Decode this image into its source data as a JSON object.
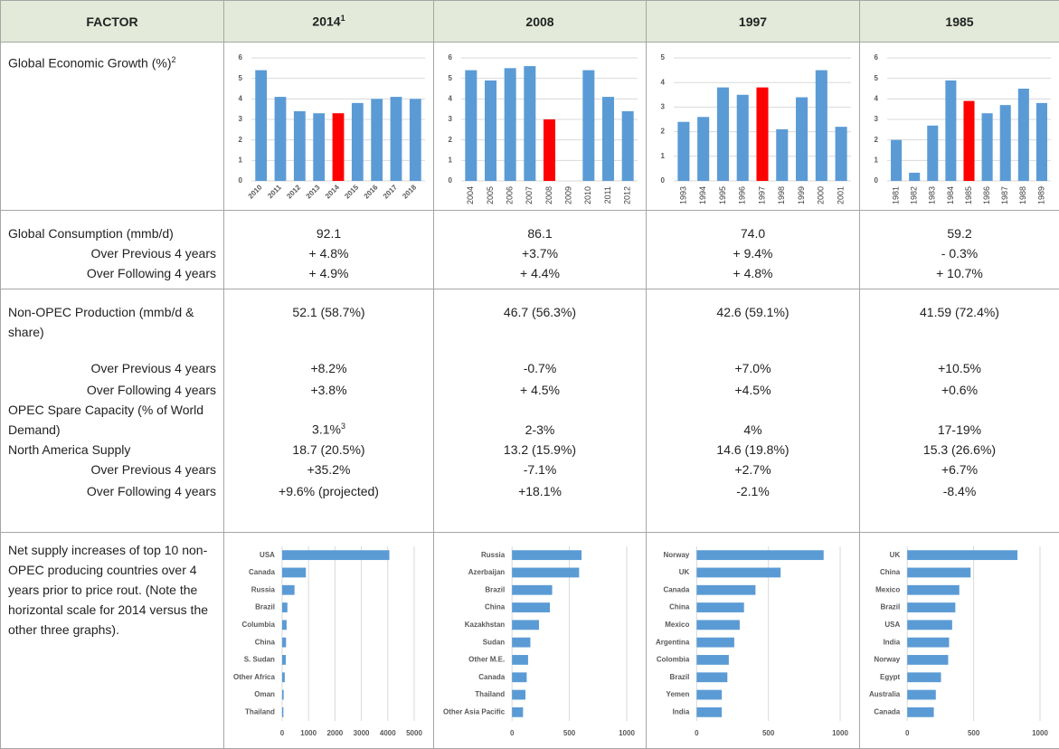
{
  "header": [
    {
      "text": "FACTOR"
    },
    {
      "text": "2014",
      "sup": "1"
    },
    {
      "text": "2008"
    },
    {
      "text": "1997"
    },
    {
      "text": "1985"
    }
  ],
  "growth": {
    "label": "Global Economic Growth (%)",
    "sup": "2",
    "charts": [
      {
        "type": "bar",
        "categories": [
          "2010",
          "2011",
          "2012",
          "2013",
          "2014",
          "2015",
          "2016",
          "2017",
          "2018"
        ],
        "values": [
          5.4,
          4.1,
          3.4,
          3.3,
          3.3,
          3.8,
          4.0,
          4.1,
          4.0
        ],
        "colors": [
          "#5b9bd5",
          "#5b9bd5",
          "#5b9bd5",
          "#5b9bd5",
          "#ff0000",
          "#5b9bd5",
          "#5b9bd5",
          "#5b9bd5",
          "#5b9bd5"
        ],
        "ylim": [
          0,
          6
        ],
        "yticks": [
          0,
          1,
          2,
          3,
          4,
          5,
          6
        ],
        "grid": true,
        "xtick_rotation": -45
      },
      {
        "type": "bar",
        "categories": [
          "2004",
          "2005",
          "2006",
          "2007",
          "2008",
          "2009",
          "2010",
          "2011",
          "2012"
        ],
        "values": [
          5.4,
          4.9,
          5.5,
          5.6,
          3.0,
          null,
          5.4,
          4.1,
          3.4
        ],
        "colors": [
          "#5b9bd5",
          "#5b9bd5",
          "#5b9bd5",
          "#5b9bd5",
          "#ff0000",
          "#5b9bd5",
          "#5b9bd5",
          "#5b9bd5",
          "#5b9bd5"
        ],
        "ylim": [
          0,
          6
        ],
        "yticks": [
          0,
          1,
          2,
          3,
          4,
          5,
          6
        ],
        "grid": true,
        "xtick_rotation": -90
      },
      {
        "type": "bar",
        "categories": [
          "1993",
          "1994",
          "1995",
          "1996",
          "1997",
          "1998",
          "1999",
          "2000",
          "2001"
        ],
        "values": [
          2.4,
          2.6,
          3.8,
          3.5,
          3.8,
          2.1,
          3.4,
          4.5,
          2.2
        ],
        "colors": [
          "#5b9bd5",
          "#5b9bd5",
          "#5b9bd5",
          "#5b9bd5",
          "#ff0000",
          "#5b9bd5",
          "#5b9bd5",
          "#5b9bd5",
          "#5b9bd5"
        ],
        "ylim": [
          0,
          5
        ],
        "yticks": [
          0,
          1,
          2,
          3,
          4,
          5
        ],
        "grid": true,
        "xtick_rotation": -90
      },
      {
        "type": "bar",
        "categories": [
          "1981",
          "1982",
          "1983",
          "1984",
          "1985",
          "1986",
          "1987",
          "1988",
          "1989"
        ],
        "values": [
          2.0,
          0.4,
          2.7,
          4.9,
          3.9,
          3.3,
          3.7,
          4.5,
          3.8
        ],
        "colors": [
          "#5b9bd5",
          "#5b9bd5",
          "#5b9bd5",
          "#5b9bd5",
          "#ff0000",
          "#5b9bd5",
          "#5b9bd5",
          "#5b9bd5",
          "#5b9bd5"
        ],
        "ylim": [
          0,
          6
        ],
        "yticks": [
          0,
          1,
          2,
          3,
          4,
          5,
          6
        ],
        "grid": true,
        "xtick_rotation": -90
      }
    ]
  },
  "consumption": [
    {
      "label": "Global Consumption (mmb/d)",
      "cells": [
        "92.1",
        "86.1",
        "74.0",
        "59.2"
      ]
    },
    {
      "label": "Over Previous 4 years",
      "indent": true,
      "cells": [
        "+ 4.8%",
        "+3.7%",
        "+ 9.4%",
        "- 0.3%"
      ]
    },
    {
      "label": "Over Following 4 years",
      "indent": true,
      "cells": [
        "+ 4.9%",
        "+ 4.4%",
        "+ 4.8%",
        "+ 10.7%"
      ]
    }
  ],
  "production": [
    {
      "label": "Non-OPEC Production (mmb/d & share)",
      "cells": [
        "52.1 (58.7%)",
        "46.7 (56.3%)",
        "42.6 (59.1%)",
        "41.59 (72.4%)"
      ]
    },
    {
      "label": "Over Previous 4 years",
      "indent": true,
      "cells": [
        "+8.2%",
        "-0.7%",
        "+7.0%",
        "+10.5%"
      ]
    },
    {
      "label": "Over Following 4 years",
      "indent": true,
      "cells": [
        "+3.8%",
        "+ 4.5%",
        "+4.5%",
        "+0.6%"
      ]
    },
    {
      "label": "OPEC Spare Capacity (% of World Demand)",
      "cells": [
        {
          "text": "3.1%",
          "sup": "3"
        },
        "2-3%",
        "4%",
        "17-19%"
      ]
    },
    {
      "label": "North America Supply",
      "cells": [
        "18.7 (20.5%)",
        "13.2 (15.9%)",
        "14.6 (19.8%)",
        "15.3 (26.6%)"
      ]
    },
    {
      "label": "Over Previous 4 years",
      "indent": true,
      "cells": [
        "+35.2%",
        "-7.1%",
        "+2.7%",
        "+6.7%"
      ]
    },
    {
      "label": "Over Following 4 years",
      "indent": true,
      "cells": [
        "+9.6% (projected)",
        "+18.1%",
        "-2.1%",
        "-8.4%"
      ]
    }
  ],
  "supply": {
    "label": "Net supply increases of top 10 non-OPEC producing countries over 4 years prior to price rout. (Note the horizontal scale for 2014 versus the other three graphs).",
    "charts": [
      {
        "type": "hbar",
        "categories": [
          "USA",
          "Canada",
          "Russia",
          "Brazil",
          "Columbia",
          "China",
          "S. Sudan",
          "Other Africa",
          "Oman",
          "Thailand"
        ],
        "values": [
          4060,
          900,
          470,
          200,
          170,
          150,
          140,
          100,
          60,
          50
        ],
        "color": "#5b9bd5",
        "xlim": [
          0,
          5000
        ],
        "xticks": [
          0,
          1000,
          2000,
          3000,
          4000,
          5000
        ],
        "grid": true
      },
      {
        "type": "hbar",
        "categories": [
          "Russia",
          "Azerbaijan",
          "Brazil",
          "China",
          "Kazakhstan",
          "Sudan",
          "Other M.E.",
          "Canada",
          "Thailand",
          "Other Asia Pacific"
        ],
        "values": [
          606,
          585,
          350,
          330,
          235,
          160,
          140,
          128,
          117,
          96
        ],
        "color": "#5b9bd5",
        "xlim": [
          0,
          1000
        ],
        "xticks": [
          0,
          500,
          1000
        ],
        "grid": true
      },
      {
        "type": "hbar",
        "categories": [
          "Norway",
          "UK",
          "Canada",
          "China",
          "Mexico",
          "Argentina",
          "Colombia",
          "Brazil",
          "Yemen",
          "India"
        ],
        "values": [
          885,
          585,
          410,
          330,
          300,
          262,
          224,
          214,
          175,
          175
        ],
        "color": "#5b9bd5",
        "xlim": [
          0,
          1000
        ],
        "xticks": [
          0,
          500,
          1000
        ],
        "grid": true
      },
      {
        "type": "hbar",
        "categories": [
          "UK",
          "China",
          "Mexico",
          "Brazil",
          "USA",
          "India",
          "Norway",
          "Egypt",
          "Australia",
          "Canada"
        ],
        "values": [
          830,
          477,
          392,
          362,
          338,
          315,
          308,
          254,
          215,
          200
        ],
        "color": "#5b9bd5",
        "xlim": [
          0,
          1000
        ],
        "xticks": [
          0,
          500,
          1000
        ],
        "grid": true
      }
    ]
  }
}
